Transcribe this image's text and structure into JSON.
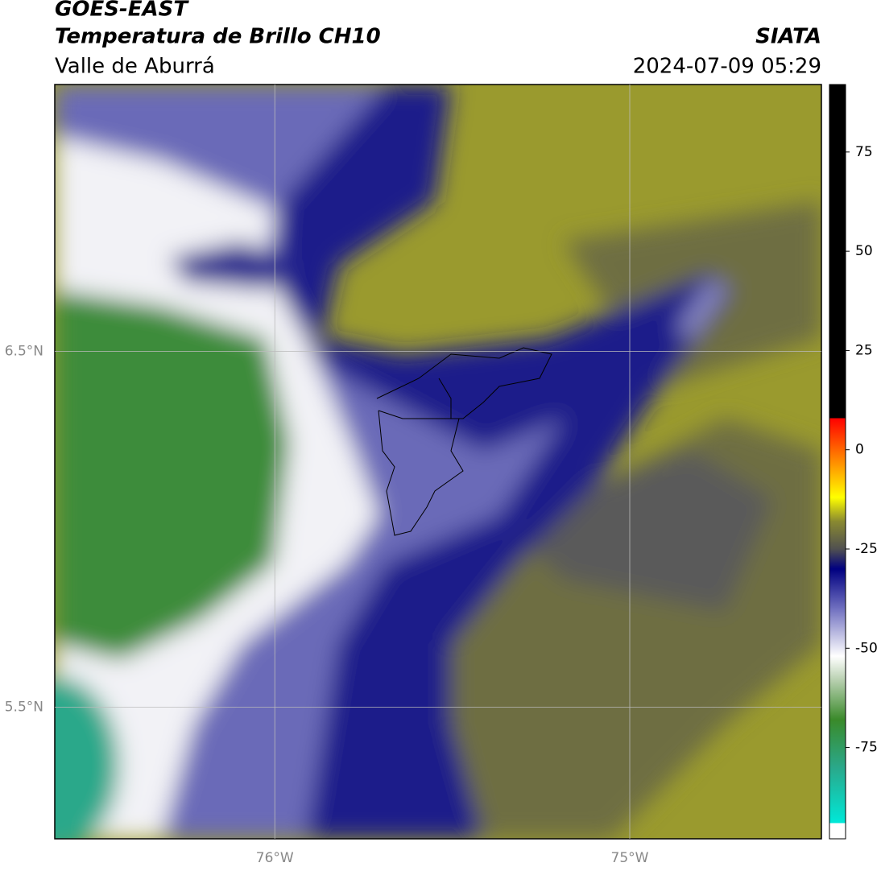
{
  "chart_data": {
    "type": "map",
    "title": "GOES-EAST",
    "subtitle": "Temperatura de Brillo CH10",
    "region": "Valle de Aburrá",
    "source": "SIATA",
    "datetime": "2024-07-09 05:29",
    "xlim": [
      -76.62,
      -74.46
    ],
    "ylim": [
      5.13,
      7.25
    ],
    "xticks": [
      {
        "value": -76,
        "label": "76°W"
      },
      {
        "value": -75,
        "label": "75°W"
      }
    ],
    "yticks": [
      {
        "value": 6.5,
        "label": "6.5°N"
      },
      {
        "value": 5.5,
        "label": "5.5°N"
      }
    ],
    "grid": true,
    "colorbar": {
      "lim": [
        -98,
        92
      ],
      "ticks": [
        75,
        50,
        25,
        0,
        -25,
        -50,
        -75
      ],
      "stops": [
        {
          "value": -98,
          "color": "#ffffff"
        },
        {
          "value": -94,
          "color": "#ffffff"
        },
        {
          "value": -94,
          "color": "#00e8d8"
        },
        {
          "value": -80,
          "color": "#2aa88a"
        },
        {
          "value": -68,
          "color": "#3a8a2a"
        },
        {
          "value": -58,
          "color": "#b8d0b0"
        },
        {
          "value": -52,
          "color": "#ffffff"
        },
        {
          "value": -40,
          "color": "#7070c0"
        },
        {
          "value": -30,
          "color": "#000080"
        },
        {
          "value": -25,
          "color": "#505050"
        },
        {
          "value": -18,
          "color": "#8a8a30"
        },
        {
          "value": -12,
          "color": "#ffff00"
        },
        {
          "value": -4,
          "color": "#ff9900"
        },
        {
          "value": 8,
          "color": "#ff0000"
        },
        {
          "value": 8,
          "color": "#000000"
        },
        {
          "value": 92,
          "color": "#000000"
        }
      ]
    }
  }
}
